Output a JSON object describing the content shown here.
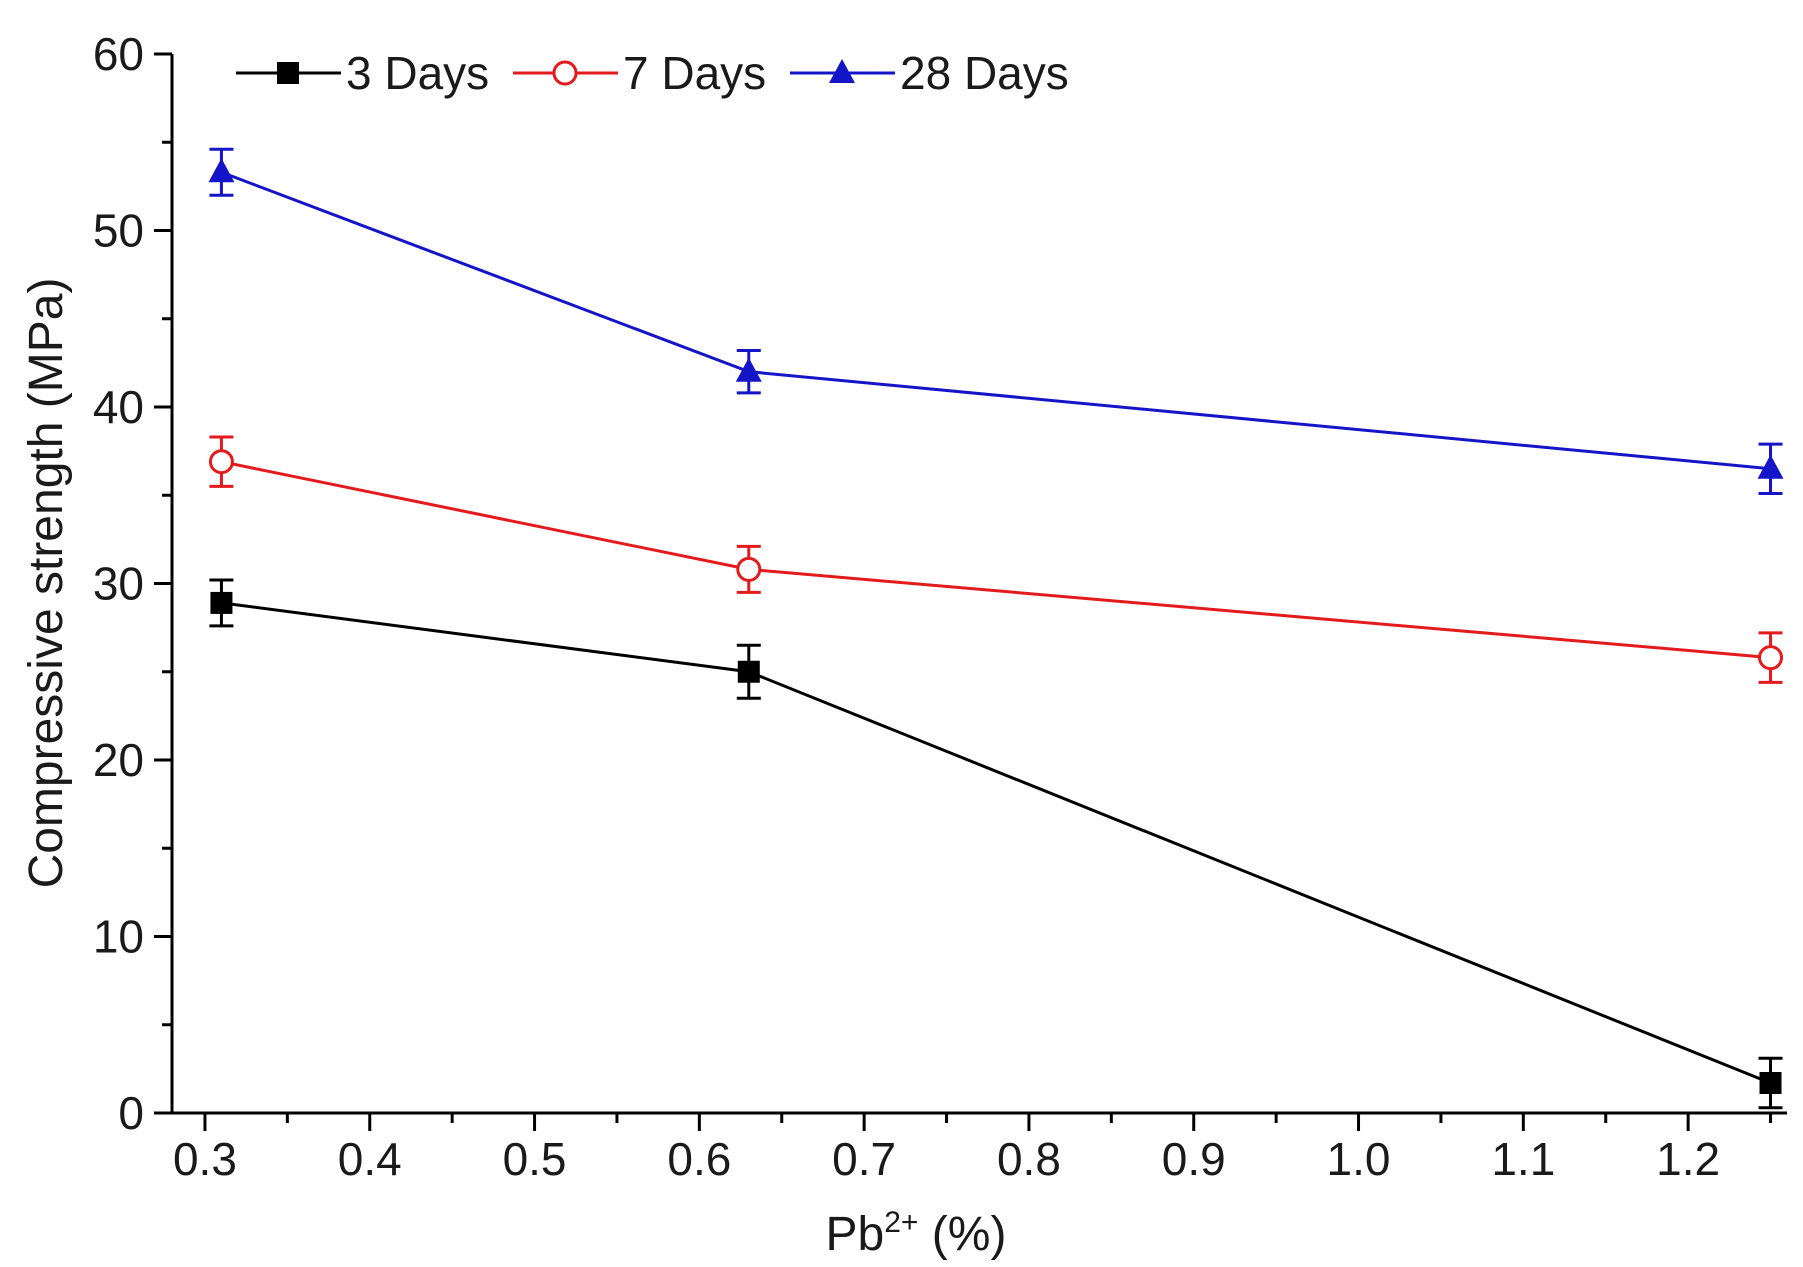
{
  "chart_data": {
    "type": "line",
    "title": "",
    "xlabel": "Pb",
    "xlabel_superscript": "2+",
    "xlabel_suffix": " (%)",
    "ylabel": "Compressive strength (MPa)",
    "xlim": [
      0.28,
      1.26
    ],
    "ylim": [
      0,
      60
    ],
    "x_ticks": [
      0.3,
      0.4,
      0.5,
      0.6,
      0.7,
      0.8,
      0.9,
      1.0,
      1.1,
      1.2
    ],
    "x_tick_labels": [
      "0.3",
      "0.4",
      "0.5",
      "0.6",
      "0.7",
      "0.8",
      "0.9",
      "1.0",
      "1.1",
      "1.2"
    ],
    "y_ticks": [
      0,
      10,
      20,
      30,
      40,
      50,
      60
    ],
    "y_tick_labels": [
      "0",
      "10",
      "20",
      "30",
      "40",
      "50",
      "60"
    ],
    "grid": false,
    "legend_position": "top-left",
    "x": [
      0.31,
      0.63,
      1.25
    ],
    "series": [
      {
        "name": "3 Days",
        "color": "#000000",
        "marker": "filled-square",
        "values": [
          28.9,
          25.0,
          1.7
        ],
        "errors": [
          1.3,
          1.5,
          1.4
        ]
      },
      {
        "name": "7 Days",
        "color": "#e41a1c",
        "marker": "open-circle",
        "values": [
          36.9,
          30.8,
          25.8
        ],
        "errors": [
          1.4,
          1.3,
          1.4
        ]
      },
      {
        "name": "28 Days",
        "color": "#1414c8",
        "marker": "filled-triangle",
        "values": [
          53.3,
          42.0,
          36.5
        ],
        "errors": [
          1.3,
          1.2,
          1.4
        ]
      }
    ]
  }
}
